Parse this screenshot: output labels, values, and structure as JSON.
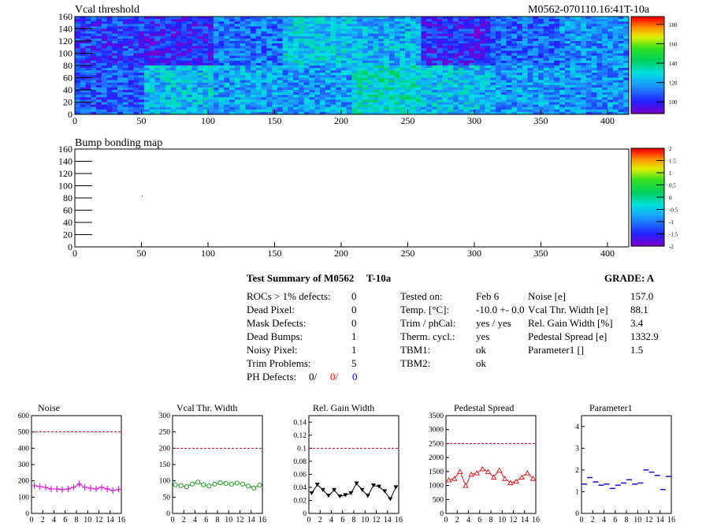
{
  "header": {
    "top_title": "Vcal threshold",
    "module_id": "M0562-070110.16:41T-10a"
  },
  "summary": {
    "title": "Test Summary of M0562",
    "temp_tag": "T-10a",
    "grade": "GRADE:  A",
    "left": [
      {
        "label": "ROCs > 1% defects:",
        "value": "0"
      },
      {
        "label": "Dead Pixel:",
        "value": "0"
      },
      {
        "label": "Mask Defects:",
        "value": "0"
      },
      {
        "label": "Dead Bumps:",
        "value": "1"
      },
      {
        "label": "Noisy Pixel:",
        "value": "1"
      },
      {
        "label": "Trim Problems:",
        "value": "5"
      }
    ],
    "ph_defects": {
      "label": "PH Defects:",
      "v1": "0/",
      "v2": "0/",
      "v3": "0"
    },
    "mid": [
      {
        "label": "Tested on:",
        "value": "Feb 6"
      },
      {
        "label": "Temp. [°C]:",
        "value": "-10.0 +- 0.0"
      },
      {
        "label": "Trim / phCal:",
        "value": "yes / yes"
      },
      {
        "label": "Therm. cycl.:",
        "value": "yes"
      },
      {
        "label": "TBM1:",
        "value": "ok"
      },
      {
        "label": "TBM2:",
        "value": "ok"
      }
    ],
    "right": [
      {
        "label": "Noise [e]",
        "value": "157.0"
      },
      {
        "label": "Vcal Thr. Width [e]",
        "value": "88.1"
      },
      {
        "label": "Rel. Gain Width [%]",
        "value": "3.4"
      },
      {
        "label": "Pedestal Spread [e]",
        "value": "1332.9"
      },
      {
        "label": "Parameter1 []",
        "value": "1.5"
      }
    ]
  },
  "colors": {
    "noise": "#e020e0",
    "vcal": "#20a020",
    "gain": "#000000",
    "pedestal": "#e02020",
    "param": "#1010d0",
    "reference": "#c00020",
    "ph_v2": "#ff0000",
    "ph_v3": "#0000ff"
  },
  "chart_data": [
    {
      "type": "heatmap",
      "title": "Vcal threshold",
      "xlim": [
        0,
        416
      ],
      "ylim": [
        0,
        160
      ],
      "xticks": [
        "0",
        "50",
        "100",
        "150",
        "200",
        "250",
        "300",
        "350",
        "400"
      ],
      "yticks": [
        "0",
        "20",
        "40",
        "60",
        "80",
        "100",
        "120",
        "140",
        "160"
      ],
      "zticks": [
        "100",
        "120",
        "140",
        "160",
        "180"
      ],
      "zlim": [
        88,
        188
      ],
      "roc_mean_top": [
        104,
        100,
        112,
        126,
        122,
        100,
        110,
        116
      ],
      "roc_mean_bottom": [
        108,
        124,
        120,
        118,
        132,
        124,
        118,
        116
      ]
    },
    {
      "type": "heatmap",
      "title": "Bump bonding map",
      "xlim": [
        0,
        416
      ],
      "ylim": [
        0,
        160
      ],
      "xticks": [
        "0",
        "50",
        "100",
        "150",
        "200",
        "250",
        "300",
        "350",
        "400"
      ],
      "yticks": [
        "0",
        "20",
        "40",
        "60",
        "80",
        "100",
        "120",
        "140",
        "160"
      ],
      "zticks": [
        "-2",
        "-1.5",
        "-1",
        "-0.5",
        "0",
        "0.5",
        "1",
        "1.5",
        "2"
      ],
      "zlim": [
        -2,
        2
      ]
    },
    {
      "type": "line",
      "title": "Noise",
      "xlim": [
        0,
        16
      ],
      "ylim": [
        0,
        600
      ],
      "reference": 500,
      "xticks": [
        "0",
        "2",
        "4",
        "6",
        "8",
        "10",
        "12",
        "14",
        "16"
      ],
      "yticks": [
        "0",
        "100",
        "200",
        "300",
        "400",
        "500",
        "600"
      ],
      "x": [
        0.5,
        1.5,
        2.5,
        3.5,
        4.5,
        5.5,
        6.5,
        7.5,
        8.5,
        9.5,
        10.5,
        11.5,
        12.5,
        13.5,
        14.5,
        15.5
      ],
      "values": [
        170,
        165,
        160,
        150,
        150,
        145,
        150,
        160,
        180,
        160,
        155,
        150,
        160,
        150,
        140,
        148
      ]
    },
    {
      "type": "line",
      "title": "Vcal Thr. Width",
      "xlim": [
        0,
        16
      ],
      "ylim": [
        0,
        300
      ],
      "reference": 200,
      "xticks": [
        "0",
        "2",
        "4",
        "6",
        "8",
        "10",
        "12",
        "14",
        "16"
      ],
      "yticks": [
        "0",
        "50",
        "100",
        "150",
        "200",
        "250",
        "300"
      ],
      "x": [
        0.5,
        1.5,
        2.5,
        3.5,
        4.5,
        5.5,
        6.5,
        7.5,
        8.5,
        9.5,
        10.5,
        11.5,
        12.5,
        13.5,
        14.5,
        15.5
      ],
      "values": [
        88,
        85,
        82,
        90,
        96,
        88,
        84,
        90,
        94,
        92,
        90,
        93,
        90,
        84,
        78,
        87
      ]
    },
    {
      "type": "line",
      "title": "Rel. Gain Width",
      "xlim": [
        0,
        16
      ],
      "ylim": [
        0,
        0.15
      ],
      "reference": 0.1,
      "xticks": [
        "0",
        "2",
        "4",
        "6",
        "8",
        "10",
        "12",
        "14",
        "16"
      ],
      "yticks": [
        "0",
        "0.02",
        "0.04",
        "0.06",
        "0.08",
        "0.1",
        "0.12",
        "0.14"
      ],
      "x": [
        0.5,
        1.5,
        2.5,
        3.5,
        4.5,
        5.5,
        6.5,
        7.5,
        8.5,
        9.5,
        10.5,
        11.5,
        12.5,
        13.5,
        14.5,
        15.5
      ],
      "values": [
        0.031,
        0.044,
        0.036,
        0.027,
        0.036,
        0.026,
        0.028,
        0.031,
        0.046,
        0.036,
        0.027,
        0.043,
        0.041,
        0.034,
        0.022,
        0.04
      ]
    },
    {
      "type": "line",
      "title": "Pedestal Spread",
      "xlim": [
        0,
        16
      ],
      "ylim": [
        0,
        3500
      ],
      "reference": 2500,
      "xticks": [
        "0",
        "2",
        "4",
        "6",
        "8",
        "10",
        "12",
        "14",
        "16"
      ],
      "yticks": [
        "0",
        "500",
        "1000",
        "1500",
        "2000",
        "2500",
        "3000",
        "3500"
      ],
      "x": [
        0.5,
        1.5,
        2.5,
        3.5,
        4.5,
        5.5,
        6.5,
        7.5,
        8.5,
        9.5,
        10.5,
        11.5,
        12.5,
        13.5,
        14.5,
        15.5
      ],
      "values": [
        1200,
        1250,
        1500,
        1000,
        1400,
        1450,
        1600,
        1500,
        1300,
        1550,
        1250,
        1100,
        1150,
        1300,
        1450,
        1250
      ]
    },
    {
      "type": "scatter",
      "title": "Parameter1",
      "xlim": [
        0,
        16
      ],
      "ylim": [
        0,
        4.5
      ],
      "xticks": [
        "0",
        "2",
        "4",
        "6",
        "8",
        "10",
        "12",
        "14",
        "16"
      ],
      "yticks": [
        "0",
        "1",
        "2",
        "3",
        "4"
      ],
      "x": [
        0.5,
        1.5,
        2.5,
        3.5,
        4.5,
        5.5,
        6.5,
        7.5,
        8.5,
        9.5,
        10.5,
        11.5,
        12.5,
        13.5,
        14.5,
        15.5
      ],
      "values": [
        1.35,
        1.65,
        1.45,
        1.3,
        1.35,
        1.15,
        1.3,
        1.4,
        1.55,
        1.35,
        1.4,
        2.0,
        1.9,
        1.75,
        1.1,
        1.7
      ]
    }
  ]
}
